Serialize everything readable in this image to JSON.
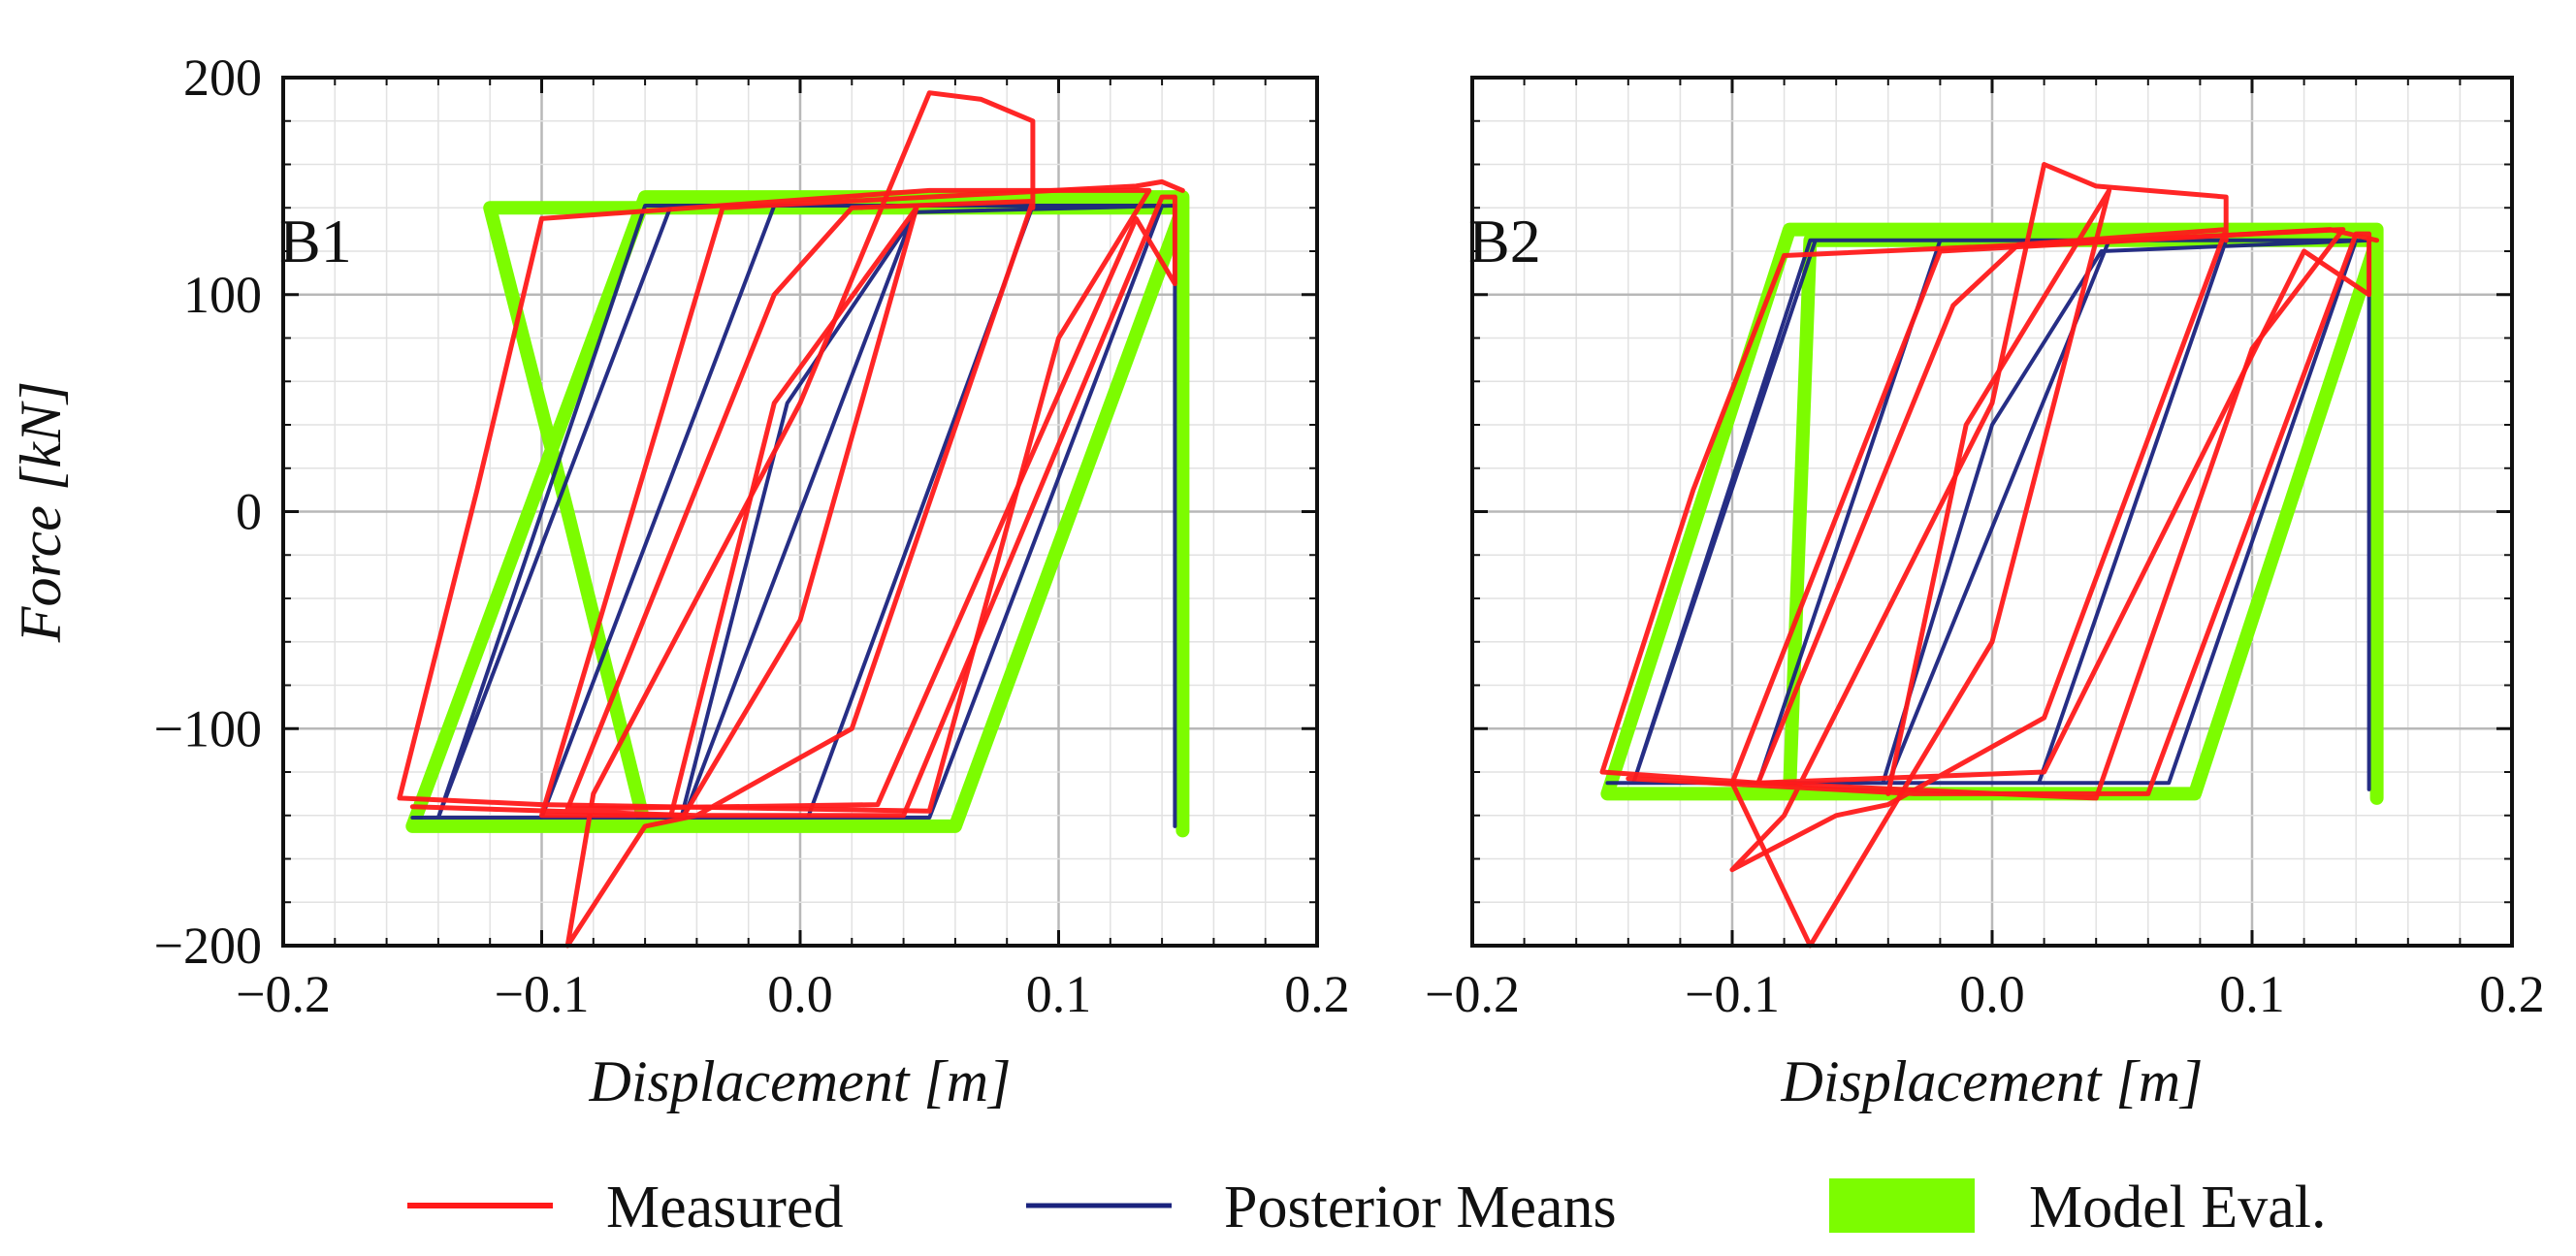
{
  "colors": {
    "measured": "#ff1a1a",
    "posterior": "#1a237e",
    "model": "#7cfc00",
    "grid_major": "#b8b8b8",
    "grid_minor": "#e2e2e2"
  },
  "legend": [
    {
      "key": "measured",
      "label": "Measured"
    },
    {
      "key": "posterior",
      "label": "Posterior Means"
    },
    {
      "key": "model",
      "label": "Model Eval."
    }
  ],
  "chart_data": [
    {
      "type": "line",
      "panel_label": "B1",
      "xlabel": "Displacement [m]",
      "ylabel": "Force [kN]",
      "xlim": [
        -0.2,
        0.2
      ],
      "ylim": [
        -200,
        200
      ],
      "xticks": [
        -0.2,
        -0.1,
        0.0,
        0.1,
        0.2
      ],
      "xtick_labels": [
        "−0.2",
        "−0.1",
        "0.0",
        "0.1",
        "0.2"
      ],
      "yticks": [
        -200,
        -100,
        0,
        100,
        200
      ],
      "ytick_labels": [
        "−200",
        "−100",
        "0",
        "100",
        "200"
      ],
      "grid": true,
      "series": [
        {
          "name": "Model Eval.",
          "key": "model",
          "width": 14,
          "points": [
            [
              -0.15,
              -145
            ],
            [
              -0.06,
              -145
            ],
            [
              -0.09,
              0
            ],
            [
              -0.12,
              140
            ],
            [
              0.148,
              140
            ],
            [
              0.06,
              -145
            ],
            [
              -0.15,
              -145
            ],
            [
              -0.06,
              145
            ],
            [
              0.148,
              145
            ],
            [
              0.148,
              -147
            ]
          ]
        },
        {
          "name": "Posterior Means",
          "key": "posterior",
          "width": 4,
          "points": [
            [
              -0.15,
              -141
            ],
            [
              -0.14,
              -141
            ],
            [
              -0.05,
              141
            ],
            [
              0.14,
              141
            ],
            [
              0.05,
              -141
            ],
            [
              -0.14,
              -141
            ],
            [
              -0.06,
              141
            ],
            [
              0.045,
              141
            ],
            [
              -0.045,
              -141
            ],
            [
              -0.1,
              -141
            ],
            [
              -0.01,
              141
            ],
            [
              0.09,
              141
            ],
            [
              0.003,
              -141
            ],
            [
              -0.046,
              -141
            ],
            [
              -0.005,
              50
            ],
            [
              0.045,
              138
            ],
            [
              0.145,
              141
            ],
            [
              0.145,
              -145
            ]
          ]
        },
        {
          "name": "Measured",
          "key": "measured",
          "width": 5,
          "points": [
            [
              -0.155,
              -132
            ],
            [
              -0.1,
              -135
            ],
            [
              0.05,
              -138
            ],
            [
              0.1,
              80
            ],
            [
              0.135,
              148
            ],
            [
              0.05,
              148
            ],
            [
              -0.1,
              135
            ],
            [
              -0.125,
              10
            ],
            [
              -0.155,
              -132
            ]
          ]
        },
        {
          "name": "Measured",
          "key": "measured",
          "width": 5,
          "points": [
            [
              -0.15,
              -136
            ],
            [
              -0.04,
              -140
            ],
            [
              0.04,
              -140
            ],
            [
              0.14,
              145
            ],
            [
              0.145,
              145
            ],
            [
              0.145,
              105
            ],
            [
              0.13,
              135
            ],
            [
              0.03,
              -135
            ],
            [
              -0.09,
              -137
            ],
            [
              -0.01,
              100
            ],
            [
              0.02,
              140
            ],
            [
              0.09,
              143
            ],
            [
              0.02,
              -100
            ],
            [
              -0.04,
              -140
            ],
            [
              -0.06,
              -145
            ],
            [
              -0.09,
              -200
            ],
            [
              -0.08,
              -130
            ],
            [
              0.0,
              50
            ],
            [
              0.05,
              193
            ],
            [
              0.07,
              190
            ],
            [
              0.09,
              180
            ],
            [
              0.09,
              140
            ]
          ]
        },
        {
          "name": "Measured",
          "key": "measured",
          "width": 5,
          "points": [
            [
              -0.05,
              -140
            ],
            [
              -0.01,
              50
            ],
            [
              0.045,
              140
            ],
            [
              0.0,
              -50
            ],
            [
              -0.045,
              -140
            ],
            [
              -0.1,
              -140
            ],
            [
              -0.03,
              140
            ],
            [
              0.13,
              150
            ],
            [
              0.14,
              152
            ],
            [
              0.148,
              148
            ]
          ]
        }
      ]
    },
    {
      "type": "line",
      "panel_label": "B2",
      "xlabel": "Displacement [m]",
      "ylabel": "",
      "xlim": [
        -0.2,
        0.2
      ],
      "ylim": [
        -200,
        200
      ],
      "xticks": [
        -0.2,
        -0.1,
        0.0,
        0.1,
        0.2
      ],
      "xtick_labels": [
        "−0.2",
        "−0.1",
        "0.0",
        "0.1",
        "0.2"
      ],
      "yticks": [
        -200,
        -100,
        0,
        100,
        200
      ],
      "ytick_labels": [],
      "grid": true,
      "series": [
        {
          "name": "Model Eval.",
          "key": "model",
          "width": 14,
          "points": [
            [
              -0.148,
              -130
            ],
            [
              -0.078,
              -130
            ],
            [
              -0.07,
              125
            ],
            [
              0.148,
              125
            ],
            [
              0.078,
              -130
            ],
            [
              -0.148,
              -130
            ],
            [
              -0.078,
              130
            ],
            [
              0.148,
              130
            ],
            [
              0.148,
              -132
            ]
          ]
        },
        {
          "name": "Posterior Means",
          "key": "posterior",
          "width": 4,
          "points": [
            [
              -0.148,
              -125
            ],
            [
              -0.138,
              -125
            ],
            [
              -0.068,
              125
            ],
            [
              0.14,
              125
            ],
            [
              0.068,
              -125
            ],
            [
              -0.138,
              -125
            ],
            [
              -0.07,
              125
            ],
            [
              0.045,
              125
            ],
            [
              -0.04,
              -125
            ],
            [
              -0.09,
              -125
            ],
            [
              -0.02,
              125
            ],
            [
              0.09,
              125
            ],
            [
              0.018,
              -125
            ],
            [
              -0.042,
              -125
            ],
            [
              0.0,
              40
            ],
            [
              0.042,
              120
            ],
            [
              0.145,
              125
            ],
            [
              0.145,
              -128
            ]
          ]
        },
        {
          "name": "Measured",
          "key": "measured",
          "width": 5,
          "points": [
            [
              -0.15,
              -120
            ],
            [
              -0.09,
              -125
            ],
            [
              0.04,
              -132
            ],
            [
              0.1,
              75
            ],
            [
              0.135,
              130
            ],
            [
              0.05,
              125
            ],
            [
              -0.08,
              118
            ],
            [
              -0.115,
              10
            ],
            [
              -0.15,
              -120
            ]
          ]
        },
        {
          "name": "Measured",
          "key": "measured",
          "width": 5,
          "points": [
            [
              -0.14,
              -123
            ],
            [
              -0.03,
              -130
            ],
            [
              0.06,
              -130
            ],
            [
              0.14,
              128
            ],
            [
              0.145,
              128
            ],
            [
              0.145,
              100
            ],
            [
              0.12,
              120
            ],
            [
              0.02,
              -120
            ],
            [
              -0.09,
              -125
            ],
            [
              -0.015,
              95
            ],
            [
              0.01,
              123
            ],
            [
              0.09,
              130
            ],
            [
              0.02,
              -95
            ],
            [
              -0.04,
              -135
            ],
            [
              -0.06,
              -140
            ],
            [
              -0.1,
              -165
            ],
            [
              -0.08,
              -140
            ],
            [
              0.0,
              50
            ],
            [
              0.02,
              160
            ],
            [
              0.04,
              150
            ],
            [
              0.09,
              145
            ],
            [
              0.09,
              125
            ]
          ]
        },
        {
          "name": "Measured",
          "key": "measured",
          "width": 5,
          "points": [
            [
              -0.04,
              -130
            ],
            [
              -0.01,
              40
            ],
            [
              0.045,
              148
            ],
            [
              0.0,
              -60
            ],
            [
              -0.07,
              -200
            ],
            [
              -0.1,
              -125
            ],
            [
              -0.02,
              120
            ],
            [
              0.13,
              130
            ],
            [
              0.148,
              125
            ]
          ]
        }
      ]
    }
  ]
}
